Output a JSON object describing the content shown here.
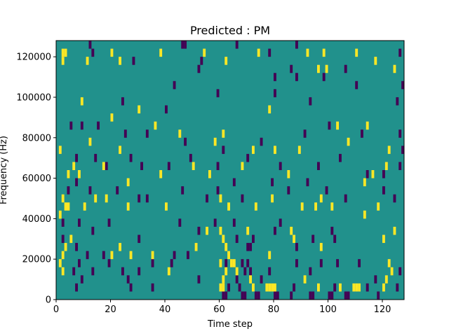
{
  "chart_data": {
    "type": "heatmap",
    "title": "Predicted : PM",
    "xlabel": "Time step",
    "ylabel": "Frequency (Hz)",
    "xlim": [
      0,
      128
    ],
    "ylim": [
      0,
      128000
    ],
    "x_ticks": [
      0,
      20,
      40,
      60,
      80,
      100,
      120
    ],
    "x_tick_labels": [
      "0",
      "20",
      "40",
      "60",
      "80",
      "100",
      "120"
    ],
    "y_ticks": [
      0,
      20000,
      40000,
      60000,
      80000,
      100000,
      120000
    ],
    "y_tick_labels": [
      "0",
      "20000",
      "40000",
      "60000",
      "80000",
      "100000",
      "120000"
    ],
    "colormap": "viridis",
    "colors": {
      "background": "#21918c",
      "low": "#440154",
      "high": "#fde725"
    },
    "cell_size": [
      1,
      4000
    ],
    "high_cells": [
      [
        2,
        120000
      ],
      [
        3,
        120000
      ],
      [
        2,
        116000
      ],
      [
        11,
        116000
      ],
      [
        20,
        120000
      ],
      [
        23,
        116000
      ],
      [
        38,
        120000
      ],
      [
        54,
        120000
      ],
      [
        62,
        116000
      ],
      [
        74,
        120000
      ],
      [
        92,
        120000
      ],
      [
        98,
        120000
      ],
      [
        110,
        120000
      ],
      [
        99,
        112000
      ],
      [
        117,
        116000
      ],
      [
        96,
        112000
      ],
      [
        124,
        112000
      ],
      [
        9,
        96000
      ],
      [
        30,
        92000
      ],
      [
        20,
        88000
      ],
      [
        36,
        84000
      ],
      [
        45,
        80000
      ],
      [
        61,
        80000
      ],
      [
        78,
        92000
      ],
      [
        103,
        84000
      ],
      [
        114,
        84000
      ],
      [
        12,
        76000
      ],
      [
        1,
        72000
      ],
      [
        23,
        72000
      ],
      [
        58,
        76000
      ],
      [
        72,
        72000
      ],
      [
        80,
        72000
      ],
      [
        89,
        72000
      ],
      [
        107,
        76000
      ],
      [
        122,
        72000
      ],
      [
        4,
        60000
      ],
      [
        6,
        64000
      ],
      [
        8,
        60000
      ],
      [
        17,
        64000
      ],
      [
        26,
        56000
      ],
      [
        38,
        60000
      ],
      [
        50,
        64000
      ],
      [
        56,
        60000
      ],
      [
        68,
        64000
      ],
      [
        85,
        60000
      ],
      [
        116,
        60000
      ],
      [
        121,
        64000
      ],
      [
        113,
        56000
      ],
      [
        2,
        48000
      ],
      [
        3,
        44000
      ],
      [
        1,
        40000
      ],
      [
        4,
        44000
      ],
      [
        10,
        44000
      ],
      [
        14,
        48000
      ],
      [
        18,
        48000
      ],
      [
        26,
        44000
      ],
      [
        40,
        44000
      ],
      [
        60,
        48000
      ],
      [
        63,
        44000
      ],
      [
        73,
        44000
      ],
      [
        79,
        48000
      ],
      [
        90,
        44000
      ],
      [
        95,
        44000
      ],
      [
        97,
        48000
      ],
      [
        101,
        44000
      ],
      [
        113,
        40000
      ],
      [
        118,
        44000
      ],
      [
        60,
        32000
      ],
      [
        61,
        28000
      ],
      [
        62,
        24000
      ],
      [
        63,
        20000
      ],
      [
        60,
        16000
      ],
      [
        62,
        12000
      ],
      [
        61,
        8000
      ],
      [
        64,
        16000
      ],
      [
        65,
        16000
      ],
      [
        66,
        12000
      ],
      [
        60,
        4000
      ],
      [
        61,
        4000
      ],
      [
        5,
        28000
      ],
      [
        3,
        24000
      ],
      [
        2,
        20000
      ],
      [
        1,
        16000
      ],
      [
        2,
        12000
      ],
      [
        20,
        20000
      ],
      [
        23,
        24000
      ],
      [
        27,
        20000
      ],
      [
        35,
        20000
      ],
      [
        41,
        12000
      ],
      [
        51,
        24000
      ],
      [
        55,
        32000
      ],
      [
        70,
        32000
      ],
      [
        78,
        20000
      ],
      [
        86,
        32000
      ],
      [
        87,
        28000
      ],
      [
        97,
        24000
      ],
      [
        120,
        28000
      ],
      [
        122,
        16000
      ],
      [
        124,
        32000
      ],
      [
        121,
        8000
      ],
      [
        123,
        12000
      ],
      [
        71,
        8000
      ],
      [
        72,
        4000
      ],
      [
        77,
        4000
      ],
      [
        78,
        4000
      ],
      [
        79,
        4000
      ],
      [
        80,
        4000
      ],
      [
        91,
        8000
      ],
      [
        96,
        4000
      ],
      [
        104,
        4000
      ],
      [
        109,
        4000
      ],
      [
        110,
        4000
      ],
      [
        111,
        4000
      ],
      [
        120,
        4000
      ]
    ],
    "low_cells": [
      [
        12,
        124000
      ],
      [
        13,
        120000
      ],
      [
        46,
        124000
      ],
      [
        47,
        124000
      ],
      [
        66,
        124000
      ],
      [
        88,
        124000
      ],
      [
        126,
        120000
      ],
      [
        28,
        116000
      ],
      [
        53,
        116000
      ],
      [
        78,
        120000
      ],
      [
        52,
        112000
      ],
      [
        80,
        108000
      ],
      [
        86,
        112000
      ],
      [
        106,
        112000
      ],
      [
        110,
        104000
      ],
      [
        98,
        108000
      ],
      [
        88,
        108000
      ],
      [
        43,
        104000
      ],
      [
        24,
        96000
      ],
      [
        40,
        92000
      ],
      [
        59,
        100000
      ],
      [
        80,
        100000
      ],
      [
        93,
        96000
      ],
      [
        125,
        96000
      ],
      [
        127,
        104000
      ],
      [
        5,
        84000
      ],
      [
        9,
        84000
      ],
      [
        15,
        84000
      ],
      [
        25,
        80000
      ],
      [
        33,
        80000
      ],
      [
        47,
        76000
      ],
      [
        61,
        72000
      ],
      [
        75,
        76000
      ],
      [
        91,
        80000
      ],
      [
        100,
        84000
      ],
      [
        112,
        80000
      ],
      [
        126,
        80000
      ],
      [
        127,
        72000
      ],
      [
        7,
        68000
      ],
      [
        14,
        68000
      ],
      [
        18,
        64000
      ],
      [
        27,
        68000
      ],
      [
        31,
        64000
      ],
      [
        41,
        64000
      ],
      [
        49,
        68000
      ],
      [
        59,
        64000
      ],
      [
        70,
        68000
      ],
      [
        82,
        64000
      ],
      [
        96,
        64000
      ],
      [
        104,
        68000
      ],
      [
        114,
        60000
      ],
      [
        120,
        60000
      ],
      [
        126,
        64000
      ],
      [
        4,
        52000
      ],
      [
        7,
        56000
      ],
      [
        12,
        52000
      ],
      [
        22,
        52000
      ],
      [
        30,
        48000
      ],
      [
        33,
        48000
      ],
      [
        46,
        52000
      ],
      [
        55,
        48000
      ],
      [
        59,
        52000
      ],
      [
        65,
        56000
      ],
      [
        68,
        48000
      ],
      [
        79,
        56000
      ],
      [
        85,
        52000
      ],
      [
        92,
        56000
      ],
      [
        99,
        52000
      ],
      [
        106,
        48000
      ],
      [
        120,
        52000
      ],
      [
        124,
        48000
      ],
      [
        2,
        36000
      ],
      [
        8,
        36000
      ],
      [
        13,
        32000
      ],
      [
        19,
        36000
      ],
      [
        30,
        28000
      ],
      [
        45,
        36000
      ],
      [
        52,
        32000
      ],
      [
        58,
        36000
      ],
      [
        65,
        36000
      ],
      [
        66,
        28000
      ],
      [
        70,
        24000
      ],
      [
        71,
        24000
      ],
      [
        72,
        28000
      ],
      [
        80,
        32000
      ],
      [
        82,
        36000
      ],
      [
        88,
        24000
      ],
      [
        94,
        28000
      ],
      [
        101,
        32000
      ],
      [
        102,
        28000
      ],
      [
        2,
        28000
      ],
      [
        7,
        24000
      ],
      [
        8,
        16000
      ],
      [
        6,
        12000
      ],
      [
        9,
        8000
      ],
      [
        11,
        20000
      ],
      [
        13,
        12000
      ],
      [
        17,
        20000
      ],
      [
        19,
        16000
      ],
      [
        24,
        12000
      ],
      [
        26,
        8000
      ],
      [
        30,
        12000
      ],
      [
        35,
        16000
      ],
      [
        42,
        16000
      ],
      [
        43,
        20000
      ],
      [
        48,
        20000
      ],
      [
        52,
        8000
      ],
      [
        62,
        16000
      ],
      [
        66,
        8000
      ],
      [
        68,
        16000
      ],
      [
        69,
        12000
      ],
      [
        70,
        16000
      ],
      [
        71,
        12000
      ],
      [
        75,
        8000
      ],
      [
        78,
        12000
      ],
      [
        88,
        16000
      ],
      [
        93,
        12000
      ],
      [
        97,
        16000
      ],
      [
        103,
        16000
      ],
      [
        111,
        16000
      ],
      [
        117,
        8000
      ],
      [
        126,
        12000
      ],
      [
        7,
        4000
      ],
      [
        27,
        4000
      ],
      [
        35,
        4000
      ],
      [
        61,
        0
      ],
      [
        62,
        0
      ],
      [
        63,
        4000
      ],
      [
        67,
        4000
      ],
      [
        68,
        0
      ],
      [
        69,
        0
      ],
      [
        73,
        0
      ],
      [
        74,
        0
      ],
      [
        80,
        0
      ],
      [
        81,
        0
      ],
      [
        86,
        0
      ],
      [
        87,
        4000
      ],
      [
        93,
        0
      ],
      [
        94,
        0
      ],
      [
        100,
        0
      ],
      [
        101,
        0
      ],
      [
        102,
        4000
      ],
      [
        106,
        0
      ],
      [
        107,
        0
      ],
      [
        114,
        4000
      ],
      [
        118,
        0
      ],
      [
        125,
        4000
      ]
    ]
  }
}
